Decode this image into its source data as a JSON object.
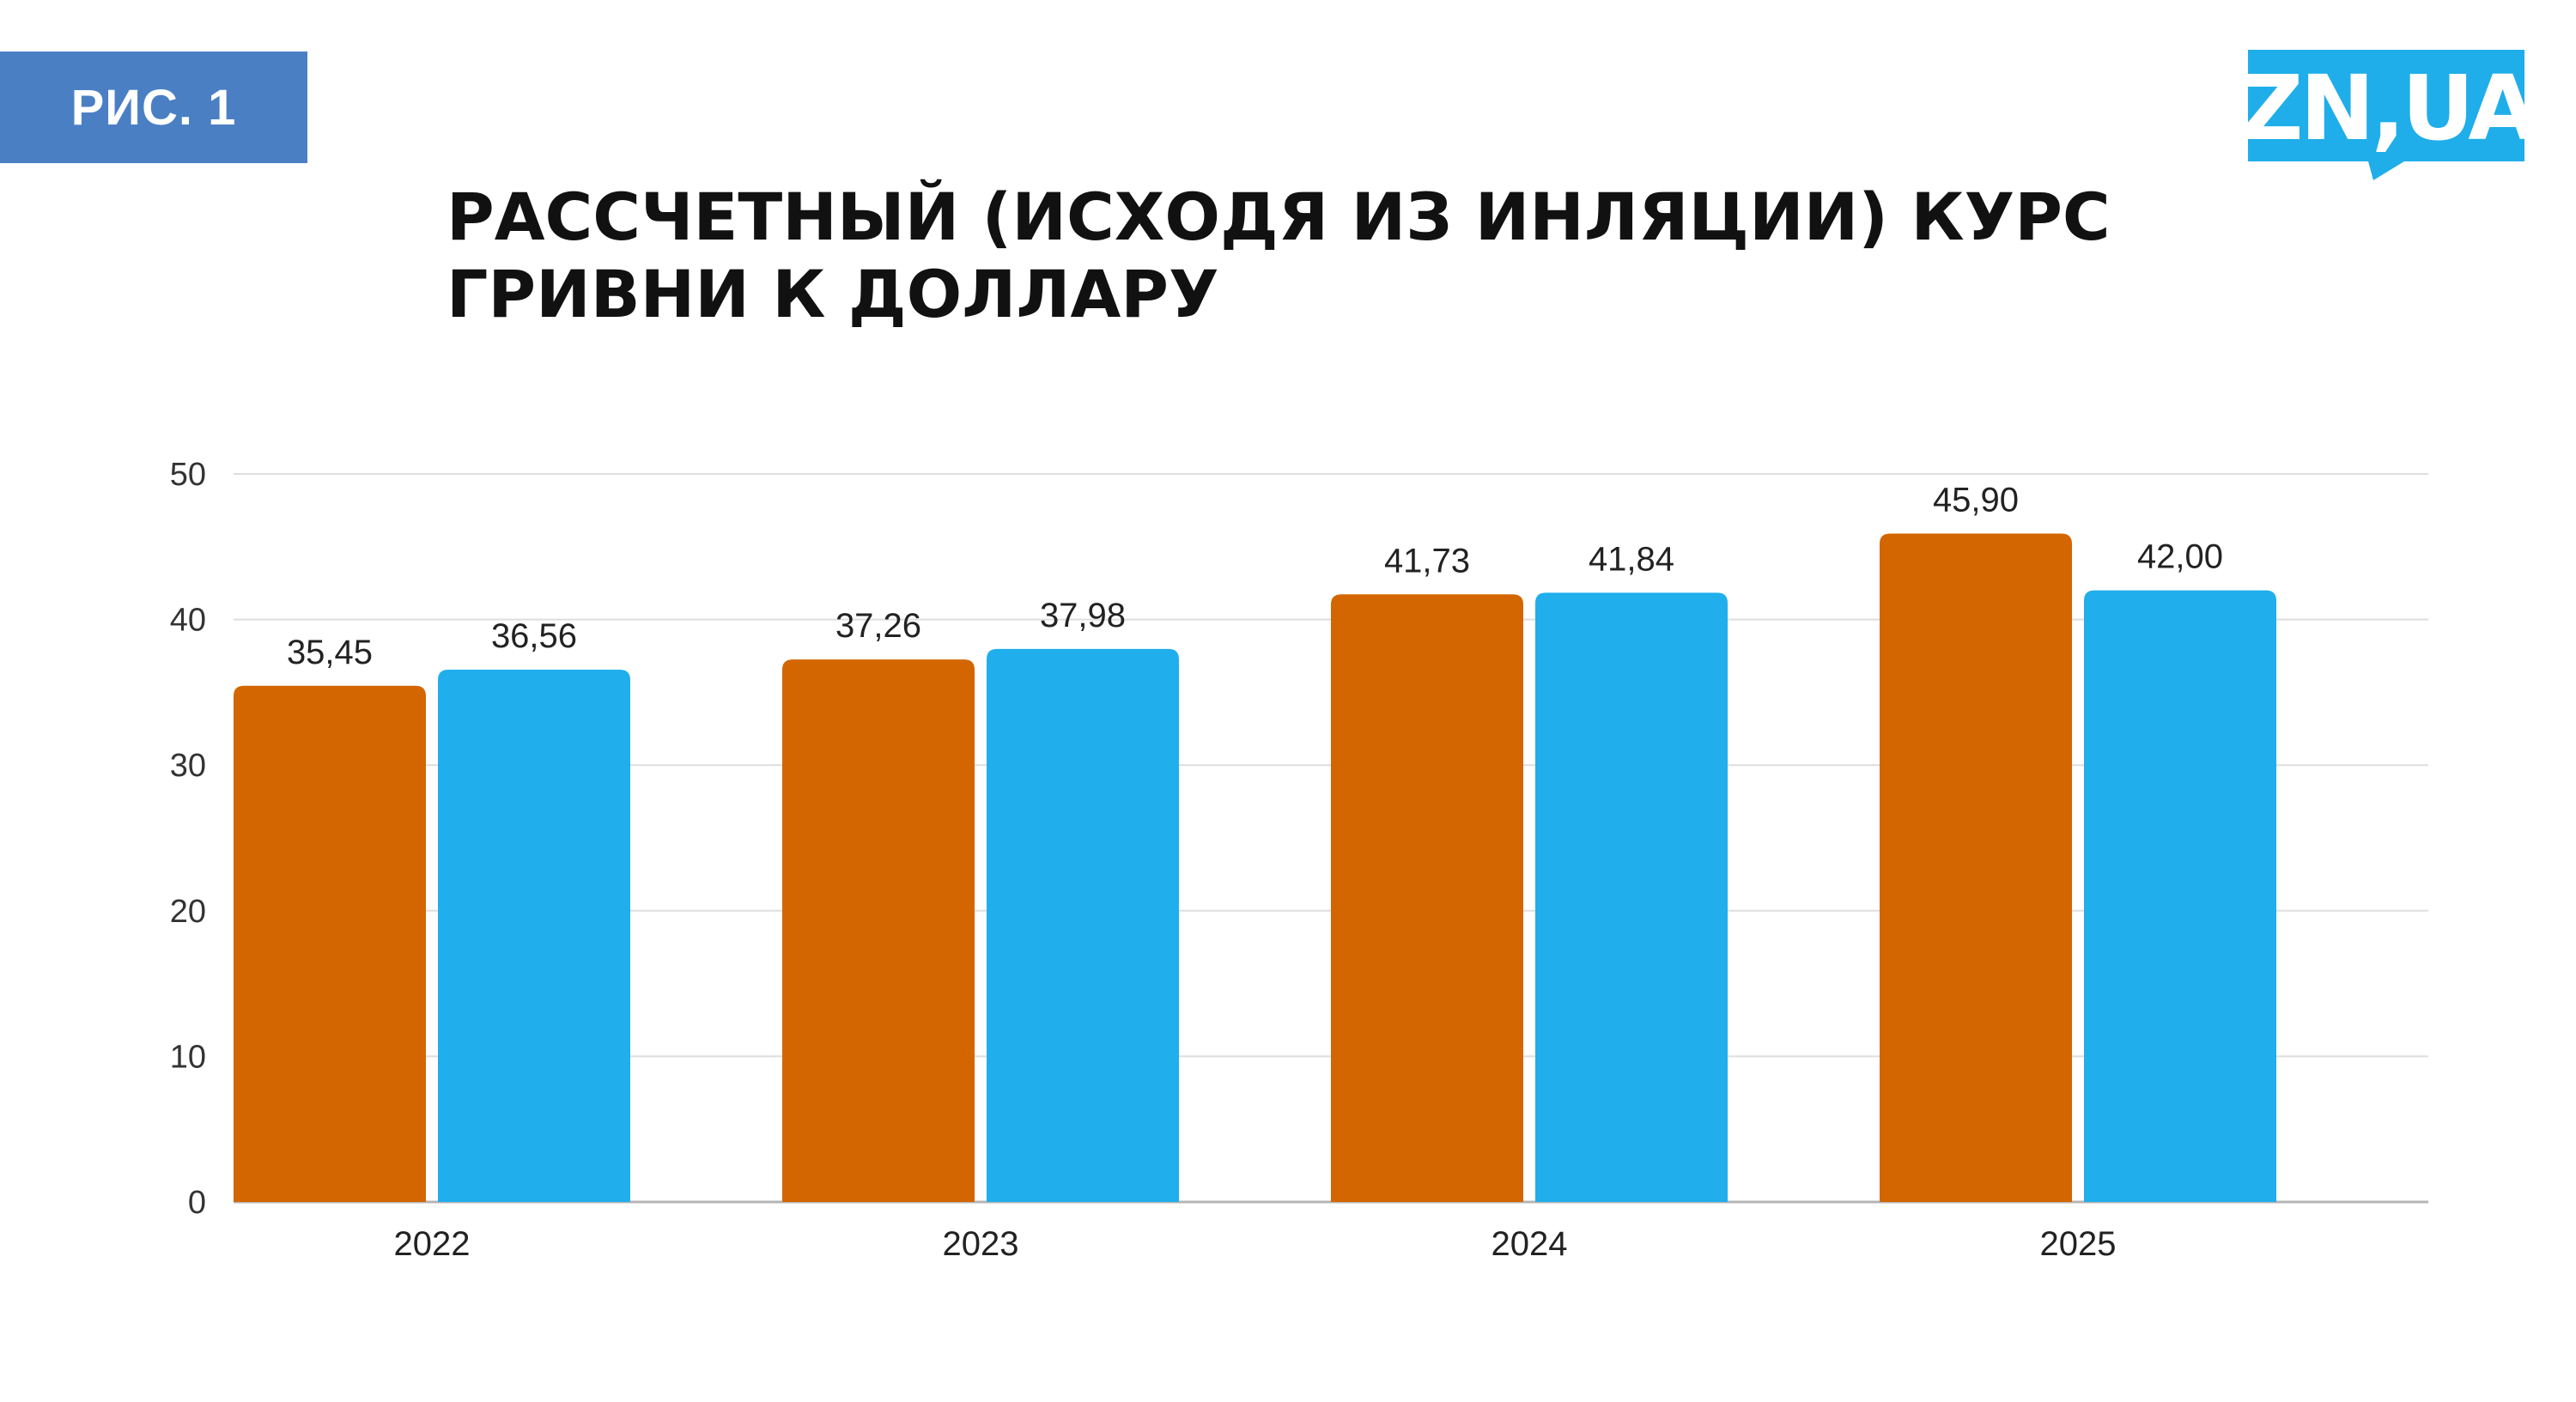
{
  "figure_label": "РИС. 1",
  "logo": {
    "text": "ZN,UA",
    "color": "#1faeea"
  },
  "title_lines": [
    "РАССЧЕТНЫЙ (ИСХОДЯ ИЗ ИНЛЯЦИИ) КУРС",
    "ГРИВНИ К ДОЛЛАРУ"
  ],
  "chart_data": {
    "type": "bar",
    "title": "РАССЧЕТНЫЙ (ИСХОДЯ ИЗ ИНЛЯЦИИ) КУРС ГРИВНИ К ДОЛЛАРУ",
    "categories": [
      "2022",
      "2023",
      "2024",
      "2025"
    ],
    "series": [
      {
        "values": [
          35.45,
          37.26,
          41.73,
          45.9
        ],
        "labels": [
          "35,45",
          "37,26",
          "41,73",
          "45,90"
        ],
        "color": "#d36600"
      },
      {
        "values": [
          36.56,
          37.98,
          41.84,
          42.0
        ],
        "labels": [
          "36,56",
          "37,98",
          "41,84",
          "42,00"
        ],
        "color": "#20aeec"
      }
    ],
    "ylim": [
      0,
      50
    ],
    "yticks": [
      0,
      10,
      20,
      30,
      40,
      50
    ],
    "xlabel": "",
    "ylabel": "",
    "grid": true,
    "legend": "none"
  }
}
